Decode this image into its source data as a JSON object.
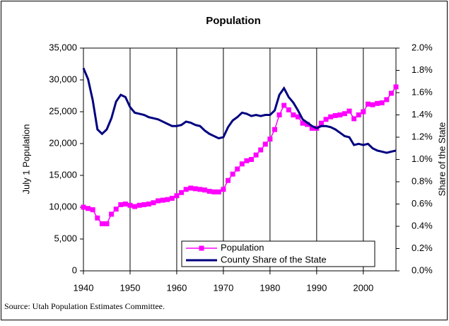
{
  "chart_data": {
    "type": "line",
    "title": "Population",
    "ylabel": "July 1 Population",
    "y2label": "Share of the State",
    "source": "Source: Utah Population Estimates Committee.",
    "x": [
      1940,
      1941,
      1942,
      1943,
      1944,
      1945,
      1946,
      1947,
      1948,
      1949,
      1950,
      1951,
      1952,
      1953,
      1954,
      1955,
      1956,
      1957,
      1958,
      1959,
      1960,
      1961,
      1962,
      1963,
      1964,
      1965,
      1966,
      1967,
      1968,
      1969,
      1970,
      1971,
      1972,
      1973,
      1974,
      1975,
      1976,
      1977,
      1978,
      1979,
      1980,
      1981,
      1982,
      1983,
      1984,
      1985,
      1986,
      1987,
      1988,
      1989,
      1990,
      1991,
      1992,
      1993,
      1994,
      1995,
      1996,
      1997,
      1998,
      1999,
      2000,
      2001,
      2002,
      2003,
      2004,
      2005,
      2006,
      2007
    ],
    "series": [
      {
        "name": "Population",
        "color": "#ff00ff",
        "marker": "square",
        "values": [
          10000,
          9800,
          9600,
          8300,
          7400,
          7400,
          8900,
          9700,
          10400,
          10500,
          10300,
          10100,
          10300,
          10400,
          10500,
          10700,
          11000,
          11100,
          11200,
          11400,
          11800,
          12300,
          12800,
          13000,
          12900,
          12800,
          12700,
          12500,
          12400,
          12400,
          12800,
          14200,
          15200,
          16000,
          16800,
          17300,
          17500,
          18200,
          19000,
          19900,
          20700,
          22200,
          24500,
          26000,
          25300,
          24500,
          24200,
          23200,
          23000,
          22400,
          22400,
          23200,
          23800,
          24200,
          24400,
          24500,
          24700,
          25100,
          23900,
          24500,
          25000,
          26200,
          26100,
          26300,
          26400,
          26900,
          27900,
          28900
        ]
      },
      {
        "name": "County Share of the State",
        "color": "#000080",
        "axis": "y2",
        "values": [
          1.82,
          1.72,
          1.53,
          1.27,
          1.23,
          1.27,
          1.37,
          1.52,
          1.58,
          1.56,
          1.47,
          1.42,
          1.41,
          1.4,
          1.38,
          1.37,
          1.36,
          1.34,
          1.32,
          1.3,
          1.3,
          1.31,
          1.34,
          1.33,
          1.31,
          1.3,
          1.26,
          1.23,
          1.21,
          1.19,
          1.2,
          1.29,
          1.35,
          1.38,
          1.42,
          1.41,
          1.39,
          1.4,
          1.39,
          1.4,
          1.4,
          1.44,
          1.58,
          1.64,
          1.56,
          1.51,
          1.44,
          1.36,
          1.33,
          1.3,
          1.28,
          1.3,
          1.3,
          1.29,
          1.27,
          1.24,
          1.21,
          1.2,
          1.13,
          1.14,
          1.13,
          1.14,
          1.1,
          1.08,
          1.07,
          1.06,
          1.07,
          1.08
        ]
      }
    ],
    "xlim": [
      1940,
      2007
    ],
    "xticks": [
      1940,
      1950,
      1960,
      1970,
      1980,
      1990,
      2000
    ],
    "ylim": [
      0,
      35000
    ],
    "yticks": [
      0,
      {
        "value": 5000,
        "label": "5,000"
      },
      {
        "value": 10000,
        "label": "10,000"
      },
      {
        "value": 15000,
        "label": "15,000"
      },
      {
        "value": 20000,
        "label": "20,000"
      },
      {
        "value": 25000,
        "label": "25,000"
      },
      {
        "value": 30000,
        "label": "30,000"
      },
      {
        "value": 35000,
        "label": "35,000"
      }
    ],
    "y2lim": [
      0,
      2
    ],
    "y2ticks": [
      {
        "value": 0,
        "label": "0.0%"
      },
      {
        "value": 0.2,
        "label": "0.2%"
      },
      {
        "value": 0.4,
        "label": "0.4%"
      },
      {
        "value": 0.6,
        "label": "0.6%"
      },
      {
        "value": 0.8,
        "label": "0.8%"
      },
      {
        "value": 1,
        "label": "1.0%"
      },
      {
        "value": 1.2,
        "label": "1.2%"
      },
      {
        "value": 1.4,
        "label": "1.4%"
      },
      {
        "value": 1.6,
        "label": "1.6%"
      },
      {
        "value": 1.8,
        "label": "1.8%"
      },
      {
        "value": 2,
        "label": "2.0%"
      }
    ],
    "grid": "x",
    "legend": "lower right"
  }
}
